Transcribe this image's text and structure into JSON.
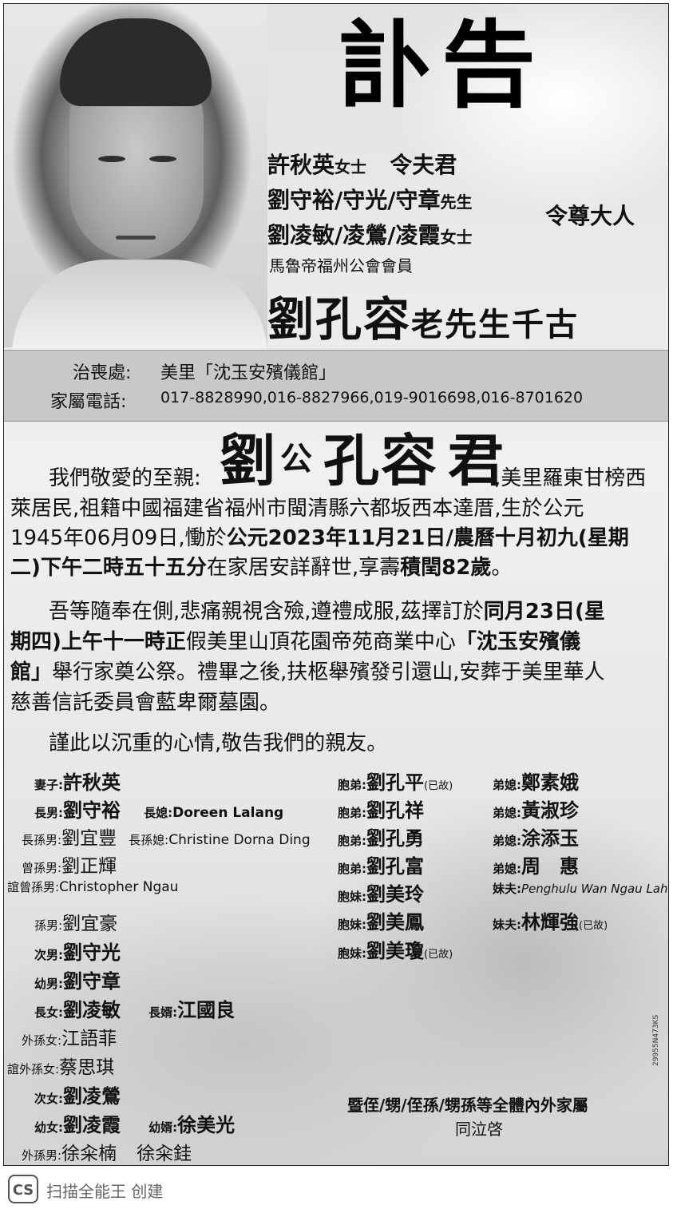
{
  "title": "訃告",
  "notice": {
    "line1_name": "許秋英",
    "line1_title": "女士",
    "line1_rel": "令夫君",
    "line2_names": "劉守裕/守光/守章",
    "line2_title": "先生",
    "line3_names": "劉凌敏/凌鶯/凌霞",
    "line3_title": "女士",
    "relation": "令尊大人",
    "association": "馬魯帝福州公會會員",
    "deceased": "劉孔容",
    "deceased_suffix": "老先生千古"
  },
  "funeral": {
    "place_label": "治喪處:",
    "place_value": "美里「沈玉安殯儀館」",
    "phone_label": "家屬電話:",
    "phone_value": "017-8828990,016-8827966,019-9016698,016-8701620"
  },
  "body": {
    "p1_pre": "我們敬愛的至親:",
    "p1_name": "劉",
    "p1_gong": "公",
    "p1_name2": "孔容",
    "p1_jun": "君",
    "p1_post": ",美里羅東甘榜西",
    "p1_line2": "萊居民,祖籍中國福建省福州市閩清縣六都坂西本達厝,生於公元",
    "p1_line3a": "1945年06月09日,慟於",
    "p1_line3b": "公元2023年11月21日/農曆十月初九(星期",
    "p1_line4a": "二)下午二時五十五分",
    "p1_line4b": "在家居安詳辭世,享壽",
    "p1_line4c": "積閏82歲",
    "p1_line4d": "。",
    "p2_line1a": "吾等隨奉在側,悲痛親視含殮,遵禮成服,茲擇訂於",
    "p2_line1b": "同月23日(星",
    "p2_line2a": "期四)上午十一時正",
    "p2_line2b": "假美里山頂花園帝苑商業中心",
    "p2_line2c": "「沈玉安殯儀",
    "p2_line3a": "館」",
    "p2_line3b": "舉行家奠公祭。禮畢之後,扶柩舉殯發引還山,安葬于美里華人",
    "p2_line4": "慈善信託委員會藍卑爾墓園。",
    "p3": "謹此以沉重的心情,敬告我們的親友。"
  },
  "family_left": [
    {
      "label": "妻子:",
      "name": "許秋英"
    },
    {
      "label": "長男:",
      "name": "劉守裕",
      "label2": "長媳:",
      "name2": "Doreen Lalang"
    },
    {
      "label": "長孫男:",
      "name": "劉宜豐",
      "label2": "長孫媳:",
      "name2": "Christine Dorna Ding"
    },
    {
      "label": "曾孫男:",
      "name": "劉正輝"
    },
    {
      "label": "誼曾孫男:",
      "name": "Christopher Ngau"
    },
    {
      "label": "孫男:",
      "name": "劉宜豪"
    },
    {
      "label": "次男:",
      "name": "劉守光"
    },
    {
      "label": "幼男:",
      "name": "劉守章"
    },
    {
      "label": "長女:",
      "name": "劉凌敏",
      "label2": "長婿:",
      "name2": "江國良"
    },
    {
      "label": "外孫女:",
      "name": "江語菲"
    },
    {
      "label": "誼外孫女:",
      "name": "蔡思琪"
    },
    {
      "label": "次女:",
      "name": "劉凌鶯"
    },
    {
      "label": "幼女:",
      "name": "劉凌霞",
      "label2": "幼婿:",
      "name2": "徐美光"
    },
    {
      "label": "外孫男:",
      "name": "徐籴楠",
      "name_b": "徐籴銈"
    }
  ],
  "family_mid": [
    {
      "label": "胞弟:",
      "name": "劉孔平",
      "note": "(已故)"
    },
    {
      "label": "胞弟:",
      "name": "劉孔祥"
    },
    {
      "label": "胞弟:",
      "name": "劉孔勇"
    },
    {
      "label": "胞弟:",
      "name": "劉孔富"
    },
    {
      "label": "胞妹:",
      "name": "劉美玲"
    },
    {
      "label": "胞妹:",
      "name": "劉美鳳"
    },
    {
      "label": "胞妹:",
      "name": "劉美瓊",
      "note": "(已故)"
    }
  ],
  "family_right": [
    {
      "label": "弟媳:",
      "name": "鄭素娥"
    },
    {
      "label": "弟媳:",
      "name": "黃淑珍"
    },
    {
      "label": "弟媳:",
      "name": "涂添玉"
    },
    {
      "label": "弟媳:",
      "name": "周　惠"
    },
    {
      "label": "妹夫:",
      "name": "Penghulu Wan Ngau Lah"
    },
    {
      "label": "妹夫:",
      "name": "林輝強",
      "note": "(已故)"
    }
  ],
  "closing": {
    "line1": "暨侄/甥/侄孫/甥孫等全體內外家屬",
    "line2": "同泣啓"
  },
  "side_code": "29955N473KS",
  "footer": {
    "logo": "CS",
    "text": "扫描全能王 创建"
  }
}
